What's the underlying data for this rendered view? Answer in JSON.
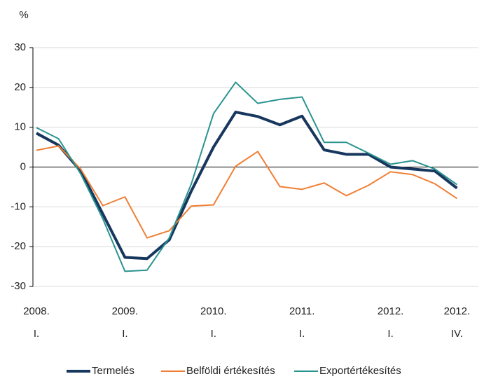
{
  "chart_data": {
    "type": "line",
    "y_label": "%",
    "categories": [
      "2008.\nI.",
      null,
      null,
      null,
      "2009.\nI.",
      null,
      null,
      null,
      "2010.\nI.",
      null,
      null,
      null,
      "2011.\nI.",
      null,
      null,
      null,
      "2012.\nI.",
      null,
      null,
      "2012.\nIV."
    ],
    "series": [
      {
        "name": "Termelés",
        "color": "#17375e",
        "width": 4,
        "values": [
          8.5,
          5.5,
          -1,
          -11.8,
          -22.7,
          -23,
          -18.3,
          -6,
          5,
          13.8,
          12.7,
          10.6,
          12.8,
          4.3,
          3.2,
          3.2,
          0,
          -0.5,
          -1,
          -5.3
        ]
      },
      {
        "name": "Belföldi értékesítés",
        "color": "#f07f35",
        "width": 2,
        "values": [
          4.2,
          5.3,
          -0.5,
          -9.7,
          -7.5,
          -17.8,
          -16,
          -9.8,
          -9.5,
          0.2,
          3.9,
          -4.9,
          -5.6,
          -4,
          -7.2,
          -4.6,
          -1.2,
          -1.9,
          -4.2,
          -7.9
        ]
      },
      {
        "name": "Exportértékesítés",
        "color": "#2a9490",
        "width": 2,
        "values": [
          9.9,
          7.1,
          -1.7,
          -13,
          -26.2,
          -25.9,
          -17.8,
          -4.2,
          13.4,
          21.3,
          16,
          17,
          17.6,
          6.2,
          6.2,
          3.5,
          0.7,
          1.6,
          -0.5,
          -4.4
        ]
      }
    ],
    "ylim": [
      -30,
      30
    ],
    "yticks": [
      -30,
      -20,
      -10,
      0,
      10,
      20,
      30
    ],
    "grid": true,
    "legend": "bottom"
  }
}
